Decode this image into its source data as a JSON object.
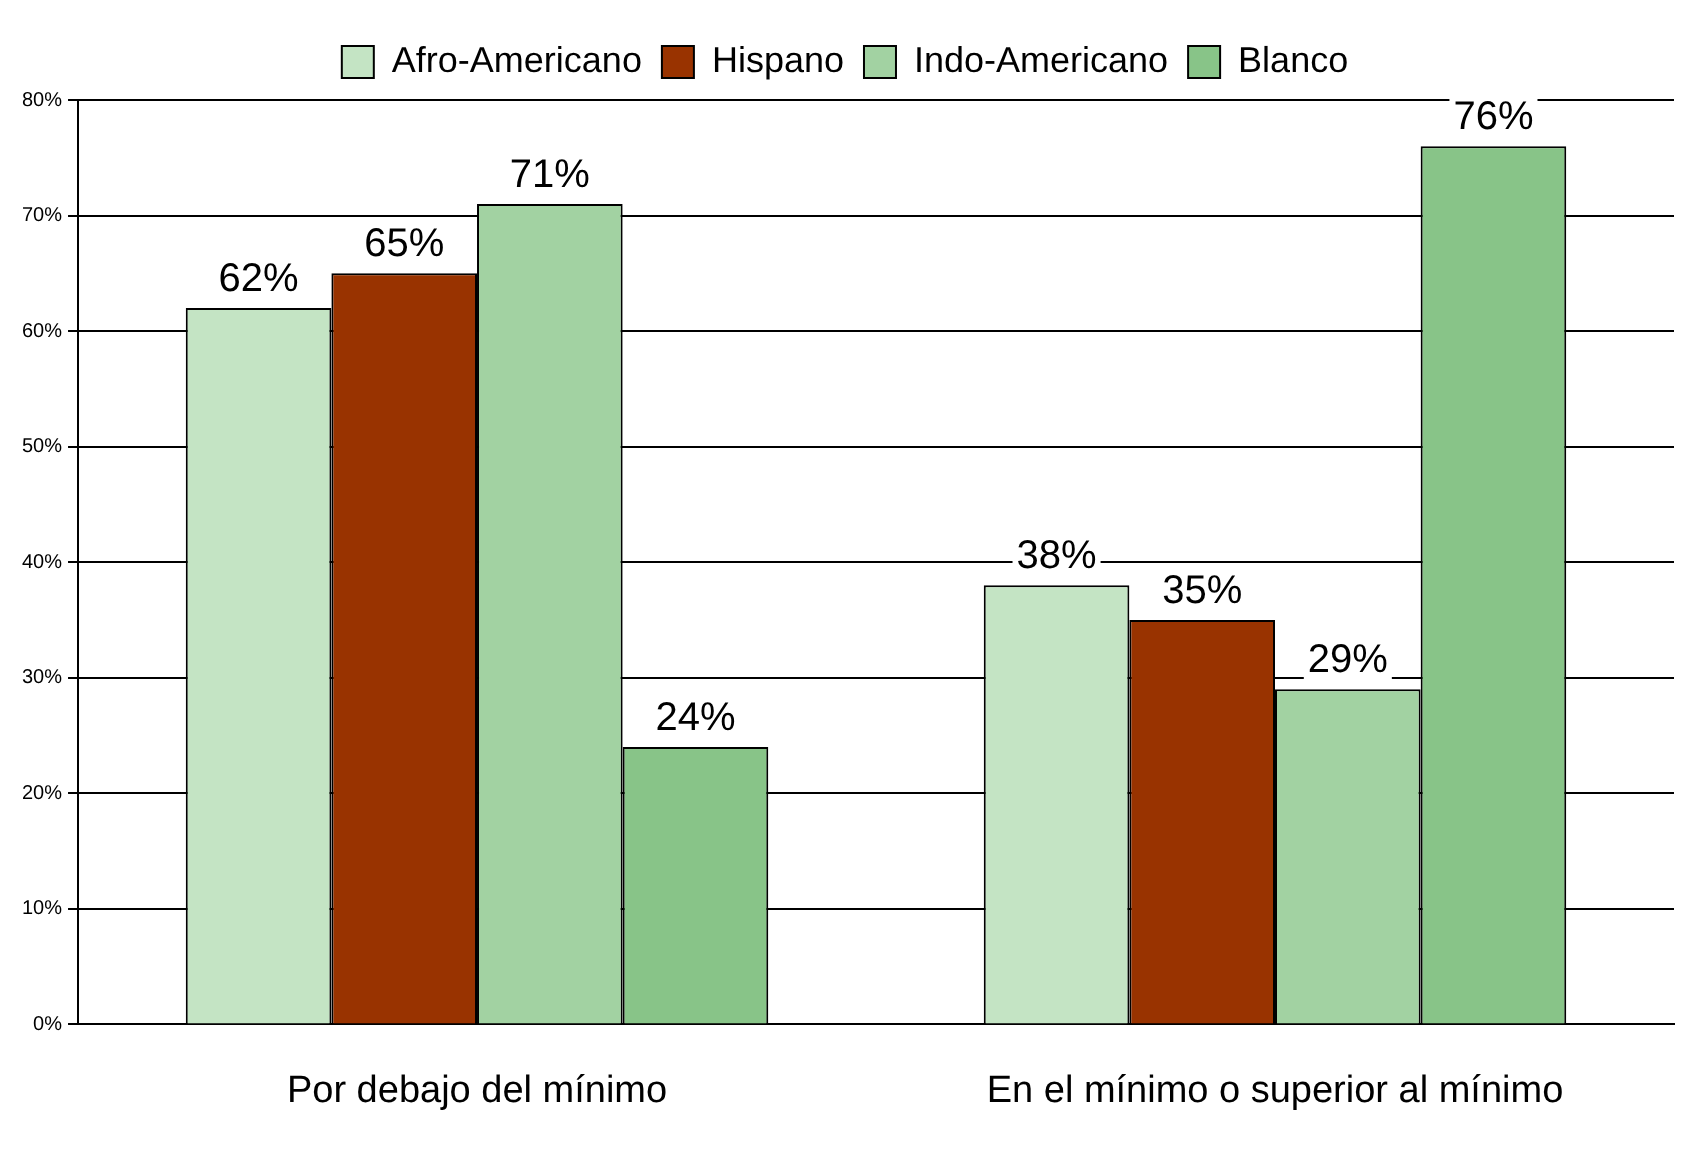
{
  "chart_data": {
    "type": "bar",
    "categories": [
      "Por debajo del mínimo",
      "En el mínimo o superior al mínimo"
    ],
    "series": [
      {
        "name": "Afro-Americano",
        "color": "#c4e4c4",
        "values": [
          62,
          38
        ],
        "value_labels": [
          "62%",
          "38%"
        ]
      },
      {
        "name": "Hispano",
        "color": "#993300",
        "values": [
          65,
          35
        ],
        "value_labels": [
          "65%",
          "35%"
        ]
      },
      {
        "name": "Indo-Americano",
        "color": "#a2d2a2",
        "values": [
          71,
          29
        ],
        "value_labels": [
          "71%",
          "29%"
        ]
      },
      {
        "name": "Blanco",
        "color": "#88c488",
        "values": [
          24,
          76
        ],
        "value_labels": [
          "24%",
          "76%"
        ]
      }
    ],
    "ylim": [
      0,
      80
    ],
    "yticks": [
      {
        "value": 0,
        "label": "0%"
      },
      {
        "value": 10,
        "label": "10%"
      },
      {
        "value": 20,
        "label": "20%"
      },
      {
        "value": 30,
        "label": "30%"
      },
      {
        "value": 40,
        "label": "40%"
      },
      {
        "value": 50,
        "label": "50%"
      },
      {
        "value": 60,
        "label": "60%"
      },
      {
        "value": 70,
        "label": "70%"
      },
      {
        "value": 80,
        "label": "80%"
      }
    ],
    "grid": "y",
    "legend": "top"
  }
}
